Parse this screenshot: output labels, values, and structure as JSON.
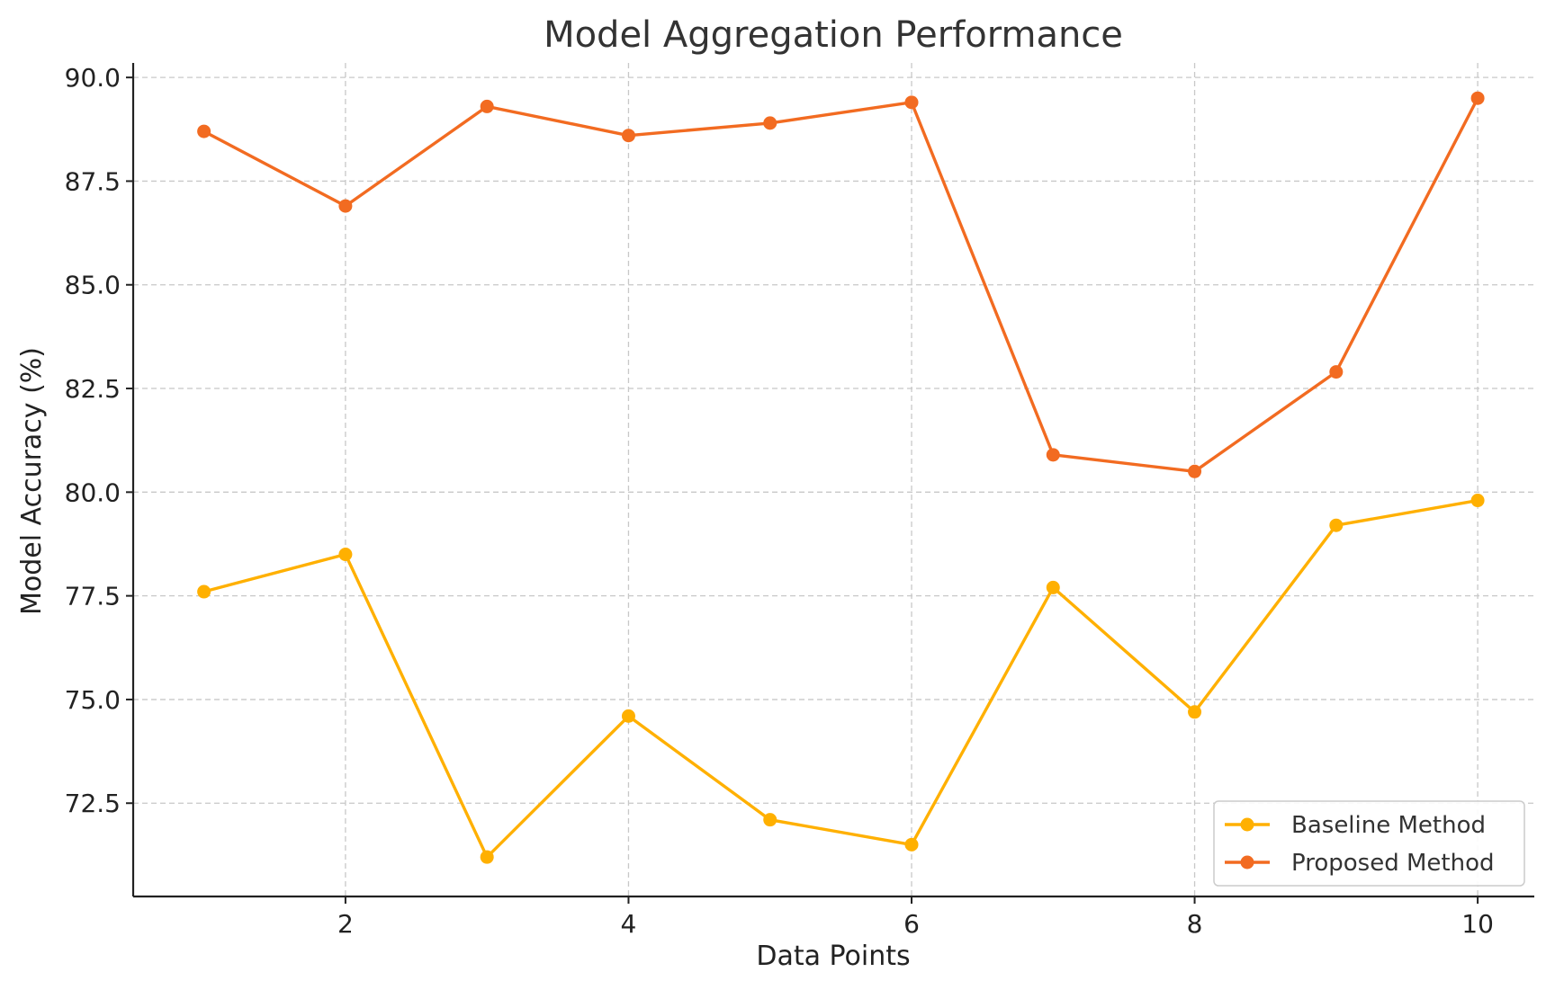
{
  "chart_data": {
    "type": "line",
    "title": "Model Aggregation Performance",
    "xlabel": "Data Points",
    "ylabel": "Model Accuracy (%)",
    "x": [
      1,
      2,
      3,
      4,
      5,
      6,
      7,
      8,
      9,
      10
    ],
    "xlim": [
      0.5,
      10.4
    ],
    "ylim": [
      70.25,
      90.35
    ],
    "xticks": [
      2,
      4,
      6,
      8,
      10
    ],
    "xtick_labels": [
      "2",
      "4",
      "6",
      "8",
      "10"
    ],
    "yticks": [
      72.5,
      75.0,
      77.5,
      80.0,
      82.5,
      85.0,
      87.5,
      90.0
    ],
    "ytick_labels": [
      "72.5",
      "75.0",
      "77.5",
      "80.0",
      "82.5",
      "85.0",
      "87.5",
      "90.0"
    ],
    "grid": true,
    "legend_position": "bottom-right",
    "series": [
      {
        "name": "Baseline Method",
        "color": "#FFB000",
        "marker": "circle",
        "values": [
          77.6,
          78.5,
          71.2,
          74.6,
          72.1,
          71.5,
          77.7,
          74.7,
          79.2,
          79.8
        ]
      },
      {
        "name": "Proposed Method",
        "color": "#F26B21",
        "marker": "circle",
        "values": [
          88.7,
          86.9,
          89.3,
          88.6,
          88.9,
          89.4,
          80.9,
          80.5,
          82.9,
          89.5
        ]
      }
    ]
  }
}
